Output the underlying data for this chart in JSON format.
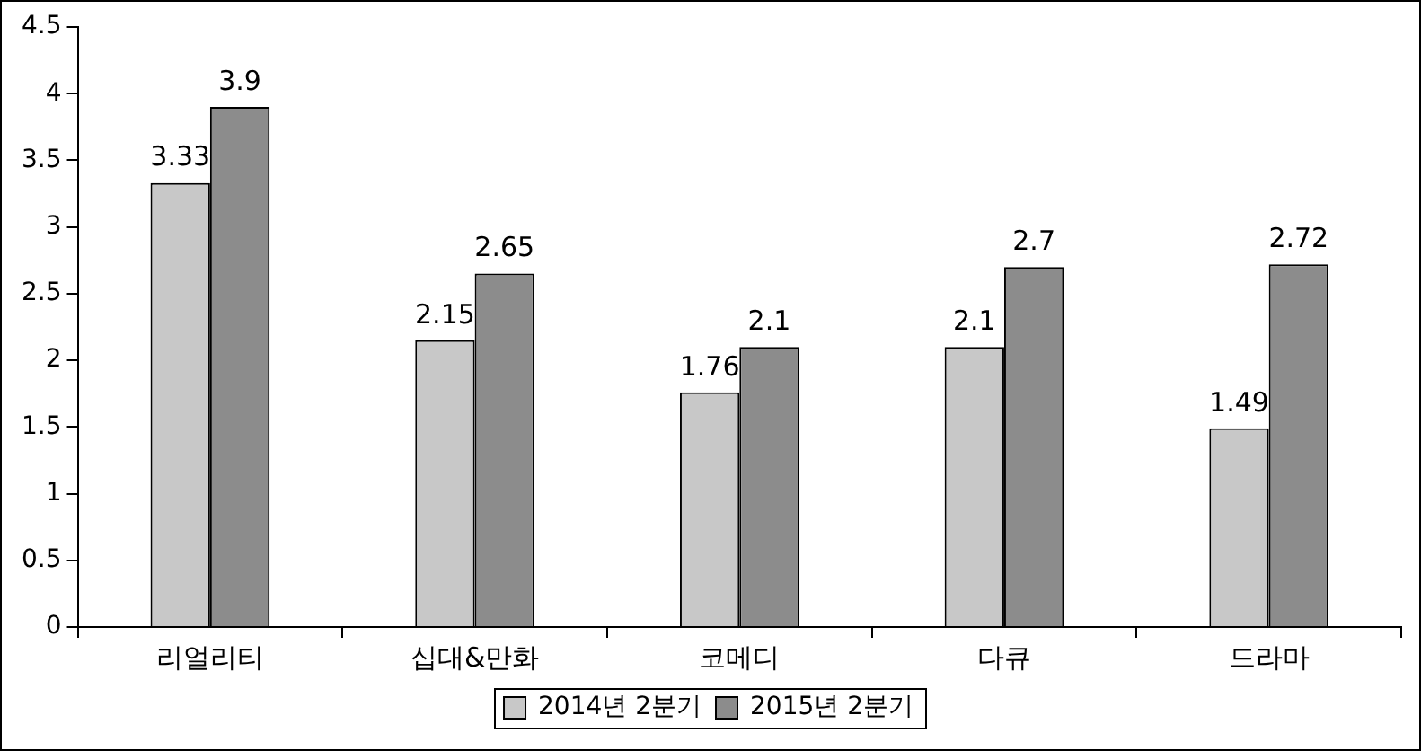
{
  "chart_data": {
    "type": "bar",
    "categories": [
      "리얼리티",
      "십대&만화",
      "코메디",
      "다큐",
      "드라마"
    ],
    "series": [
      {
        "name": "2014년 2분기",
        "color": "#c8c8c8",
        "values": [
          3.33,
          2.15,
          1.76,
          2.1,
          1.49
        ]
      },
      {
        "name": "2015년 2분기",
        "color": "#8c8c8c",
        "values": [
          3.9,
          2.65,
          2.1,
          2.7,
          2.72
        ]
      }
    ],
    "ylim": [
      0,
      4.5
    ],
    "yticks": [
      0,
      0.5,
      1,
      1.5,
      2,
      2.5,
      3,
      3.5,
      4,
      4.5
    ],
    "grid": false,
    "legend": "bottom",
    "data_labels": true
  }
}
